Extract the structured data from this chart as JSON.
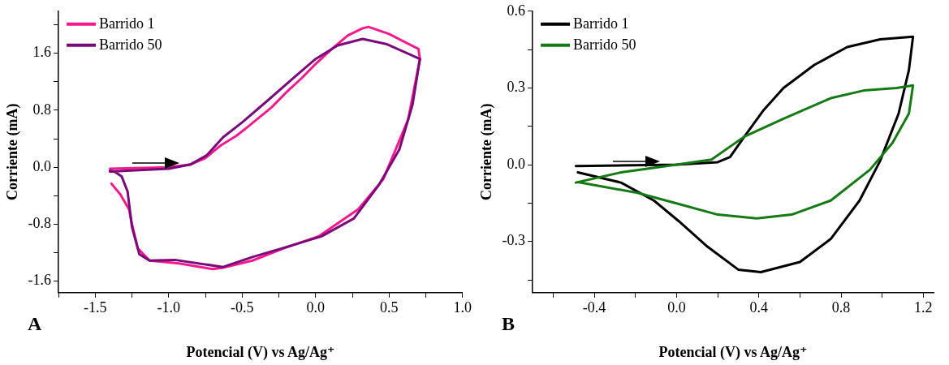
{
  "chart_data": [
    {
      "type": "line",
      "xlabel": "Potencial (V) vs Ag/Ag⁺",
      "ylabel": "Corriente (mA)",
      "annotations": [
        "A"
      ],
      "legend": "top left",
      "marker": "none",
      "line_style": "solid",
      "grid": false,
      "xlim": [
        -1.75,
        1.0
      ],
      "xticks": [
        {
          "value": -1.75,
          "label": null
        },
        -1.5,
        {
          "value": -1.25,
          "label": null
        },
        {
          "value": -1,
          "label": "-1.0"
        },
        {
          "value": -0.75,
          "label": null
        },
        -0.5,
        {
          "value": -0.25,
          "label": null
        },
        {
          "value": 0,
          "label": "0.0"
        },
        {
          "value": 0.25,
          "label": null
        },
        0.5,
        {
          "value": 0.75,
          "label": null
        },
        {
          "value": 1,
          "label": "1.0"
        }
      ],
      "ylim": [
        -1.76,
        2.19
      ],
      "yticks": [
        -1.6,
        {
          "value": -1.2,
          "label": null
        },
        -0.8,
        {
          "value": -0.4,
          "label": null
        },
        {
          "value": 0,
          "label": "0.0"
        },
        {
          "value": 0.4,
          "label": null
        },
        0.8,
        {
          "value": 1.2,
          "label": null
        },
        1.6,
        {
          "value": 2.0,
          "label": null
        }
      ],
      "series": [
        {
          "name": "Barrido 1",
          "color": "#f51a8c",
          "x": [
            -1.4,
            -1.0,
            -0.85,
            -0.75,
            -0.65,
            -0.54,
            -0.46,
            -0.3,
            -0.2,
            -0.09,
            0.0,
            0.11,
            0.22,
            0.32,
            0.36,
            0.5,
            0.7,
            0.71,
            0.63,
            0.46,
            0.29,
            0.02,
            -0.22,
            -0.43,
            -0.63,
            -0.7,
            -0.93,
            -1.13,
            -1.21,
            -1.25,
            -1.27,
            -1.33,
            -1.39
          ],
          "values": [
            -0.02,
            0.0,
            0.04,
            0.13,
            0.3,
            0.44,
            0.57,
            0.84,
            1.05,
            1.26,
            1.45,
            1.66,
            1.85,
            1.95,
            1.97,
            1.87,
            1.66,
            1.52,
            0.67,
            -0.17,
            -0.59,
            -0.97,
            -1.14,
            -1.31,
            -1.41,
            -1.43,
            -1.35,
            -1.31,
            -1.14,
            -0.8,
            -0.59,
            -0.38,
            -0.23
          ]
        },
        {
          "name": "Barrido 50",
          "color": "#7a0a7a",
          "x": [
            -1.4,
            -1.0,
            -0.85,
            -0.74,
            -0.63,
            -0.5,
            -0.33,
            -0.17,
            0.0,
            0.15,
            0.32,
            0.48,
            0.71,
            0.66,
            0.57,
            0.43,
            0.26,
            0.04,
            -0.2,
            -0.43,
            -0.63,
            -0.96,
            -1.13,
            -1.2,
            -1.25,
            -1.28,
            -1.32,
            -1.37,
            -1.4
          ],
          "values": [
            -0.06,
            -0.02,
            0.04,
            0.17,
            0.42,
            0.63,
            0.93,
            1.22,
            1.52,
            1.71,
            1.8,
            1.73,
            1.52,
            0.88,
            0.25,
            -0.25,
            -0.72,
            -0.97,
            -1.12,
            -1.26,
            -1.4,
            -1.3,
            -1.31,
            -1.22,
            -0.84,
            -0.34,
            -0.13,
            -0.06,
            -0.05
          ]
        }
      ]
    },
    {
      "type": "line",
      "xlabel": "Potencial (V) vs Ag/Ag⁺",
      "ylabel": "Corriente (mA)",
      "annotations": [
        "B"
      ],
      "legend": "top left",
      "marker": "none",
      "line_style": "solid",
      "grid": false,
      "xlim": [
        -0.7,
        1.25
      ],
      "xticks": [
        {
          "value": -0.6,
          "label": null
        },
        -0.4,
        {
          "value": -0.2,
          "label": null
        },
        {
          "value": 0,
          "label": "0.0"
        },
        {
          "value": 0.2,
          "label": null
        },
        0.4,
        {
          "value": 0.6,
          "label": null
        },
        0.8,
        {
          "value": 1.0,
          "label": null
        },
        1.2
      ],
      "ylim": [
        -0.5,
        0.6
      ],
      "yticks": [
        {
          "value": -0.45,
          "label": null
        },
        -0.3,
        {
          "value": -0.15,
          "label": null
        },
        {
          "value": 0,
          "label": "0.0"
        },
        {
          "value": 0.15,
          "label": null
        },
        0.3,
        {
          "value": 0.45,
          "label": null
        },
        0.6
      ],
      "series": [
        {
          "name": "Barrido 1",
          "color": "#000000",
          "x": [
            -0.49,
            0.0,
            0.2,
            0.26,
            0.33,
            0.42,
            0.52,
            0.67,
            0.83,
            0.99,
            1.15,
            1.13,
            1.08,
            0.99,
            0.89,
            0.75,
            0.6,
            0.41,
            0.3,
            0.15,
            0.01,
            -0.11,
            -0.27,
            -0.48
          ],
          "values": [
            -0.005,
            0.0,
            0.01,
            0.03,
            0.11,
            0.21,
            0.3,
            0.39,
            0.46,
            0.49,
            0.5,
            0.37,
            0.2,
            0.015,
            -0.14,
            -0.29,
            -0.38,
            -0.42,
            -0.41,
            -0.32,
            -0.22,
            -0.14,
            -0.07,
            -0.03
          ]
        },
        {
          "name": "Barrido 50",
          "color": "#157a15",
          "x": [
            -0.49,
            -0.27,
            0.0,
            0.17,
            0.33,
            0.52,
            0.75,
            0.91,
            1.07,
            1.15,
            1.13,
            1.05,
            0.94,
            0.75,
            0.56,
            0.39,
            0.2,
            0.04,
            -0.19,
            -0.48
          ],
          "values": [
            -0.07,
            -0.03,
            0.0,
            0.02,
            0.11,
            0.18,
            0.26,
            0.29,
            0.3,
            0.31,
            0.2,
            0.085,
            -0.02,
            -0.14,
            -0.195,
            -0.21,
            -0.195,
            -0.16,
            -0.11,
            -0.068
          ]
        }
      ]
    }
  ]
}
